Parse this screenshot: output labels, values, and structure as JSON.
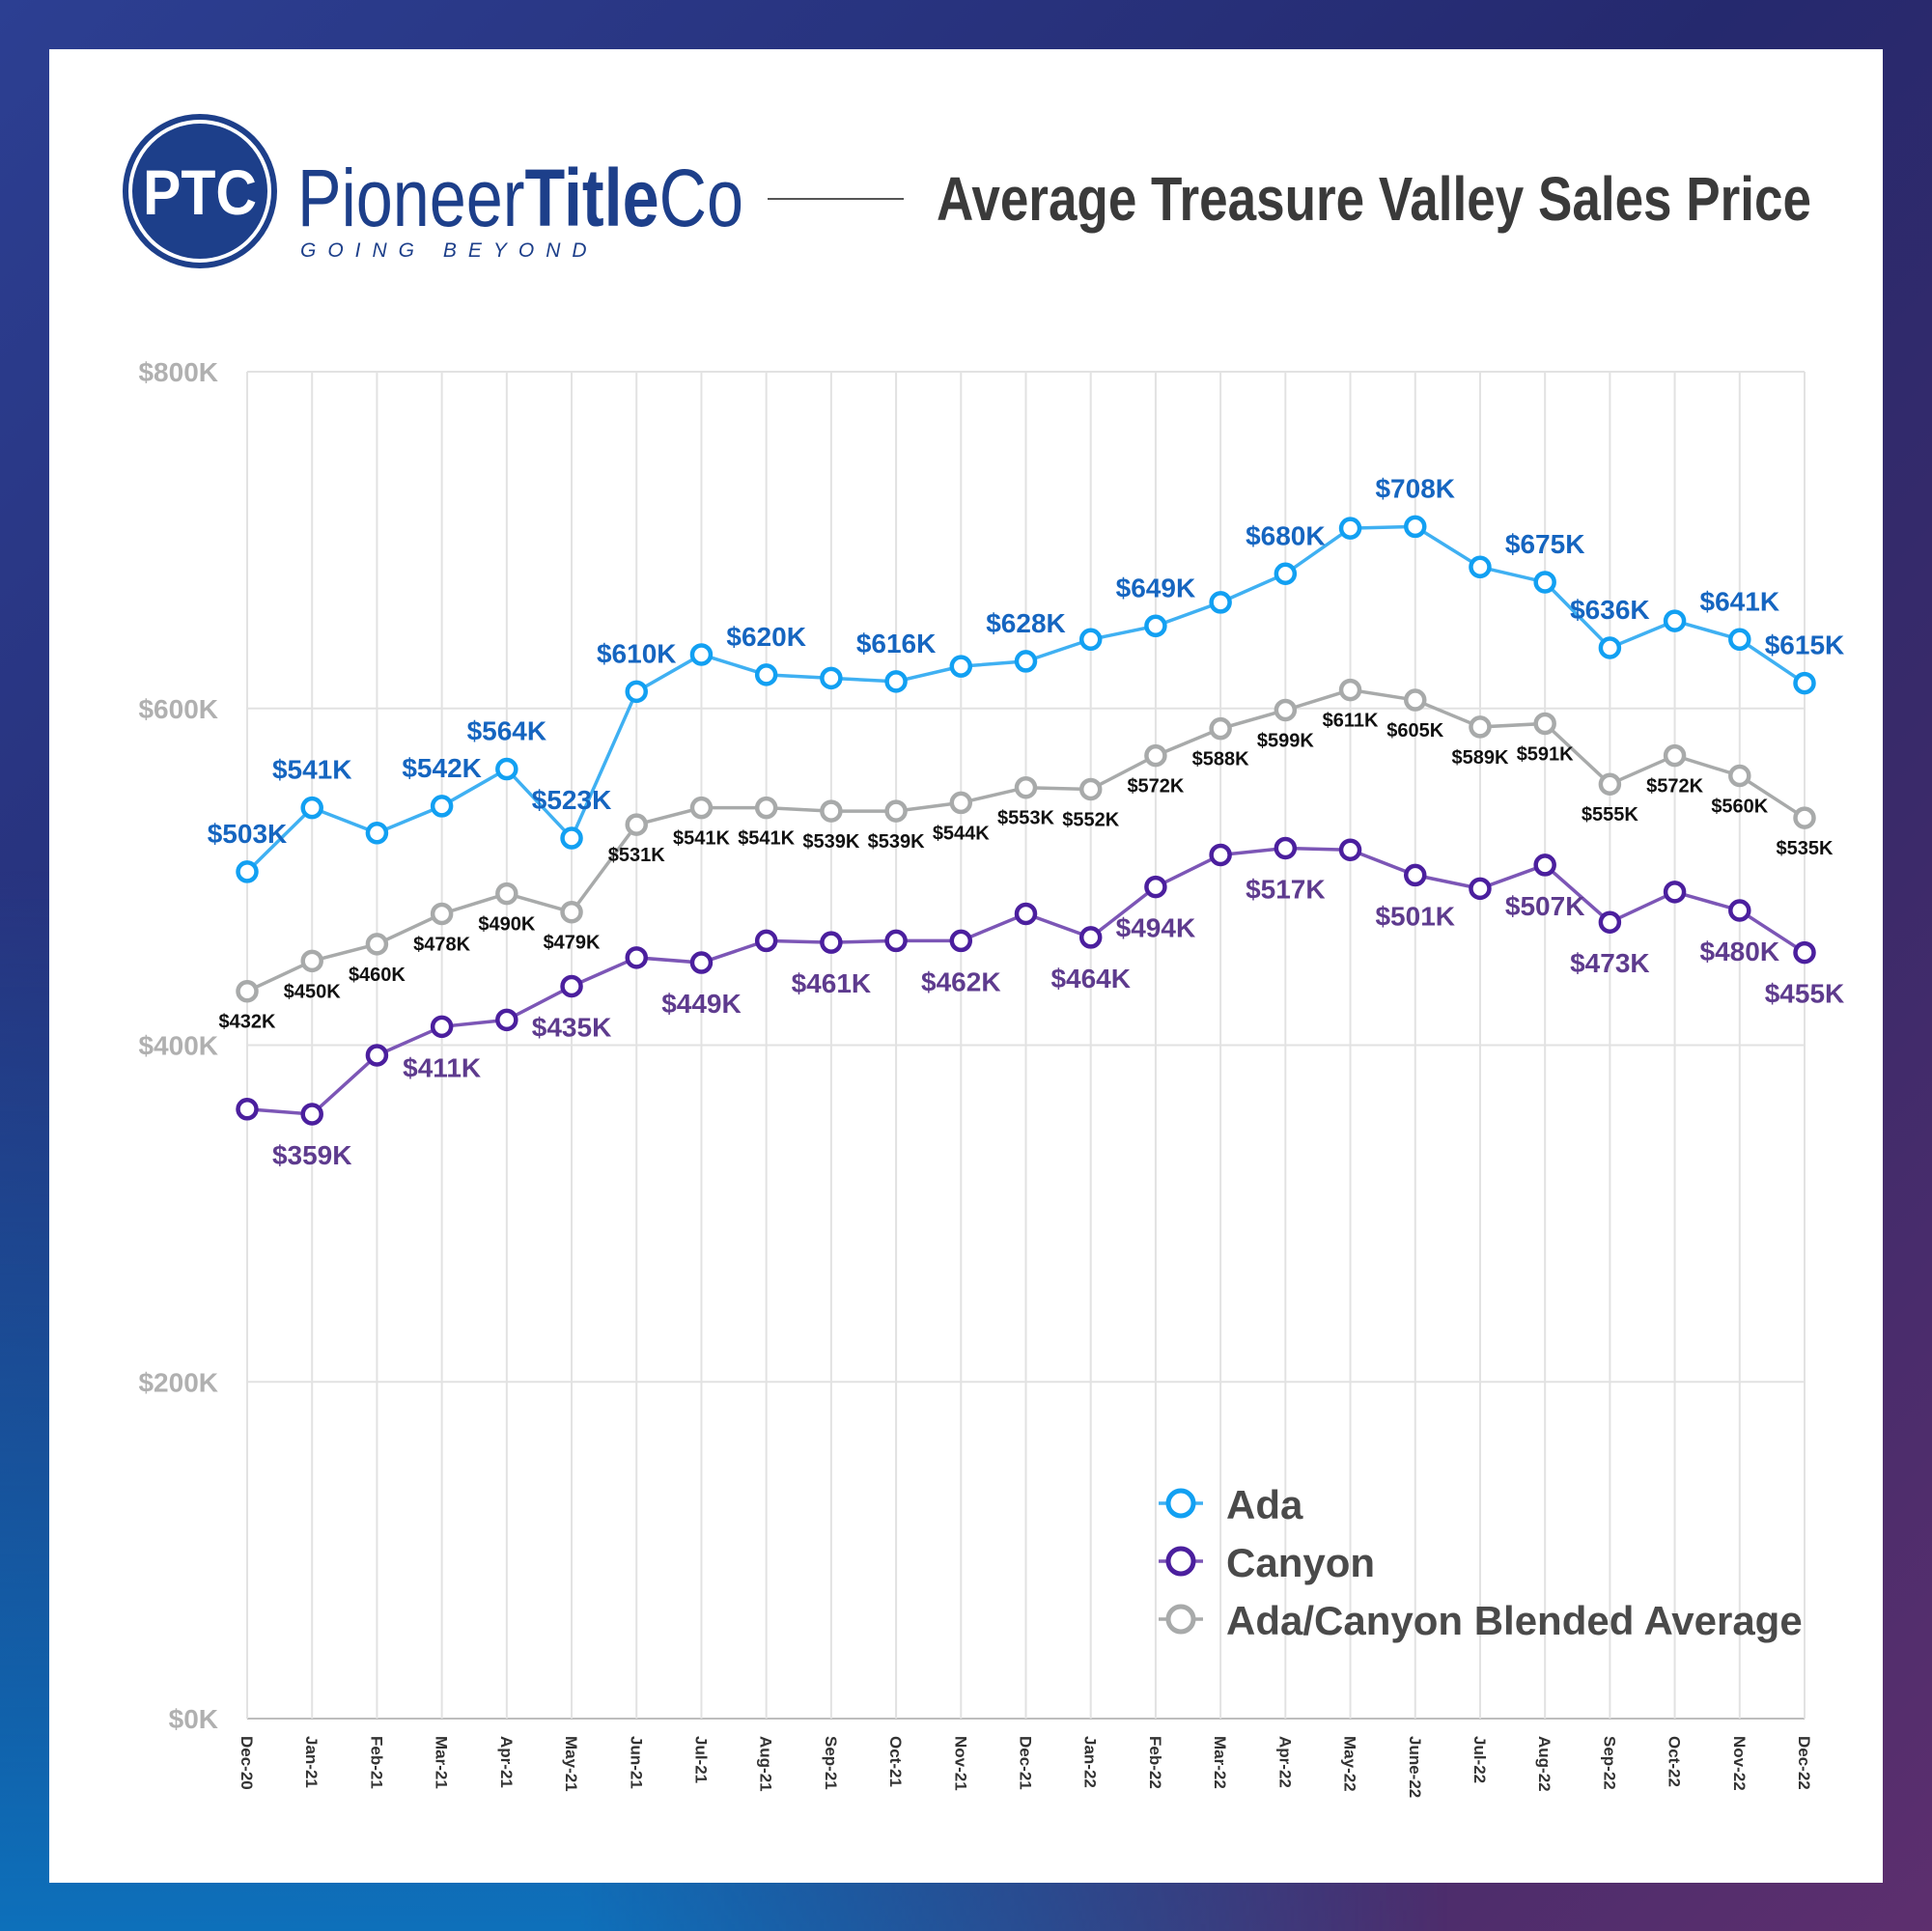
{
  "brand": {
    "logo_initials": "PTC",
    "name_part1": "Pioneer",
    "name_part2": "Title",
    "name_part3": "Co",
    "tagline": "GOING BEYOND",
    "color": "#1d3f8a"
  },
  "chart_data": {
    "type": "line",
    "title": "Average Treasure Valley Sales Price",
    "xlabel": "",
    "ylabel": "",
    "ylim": [
      0,
      800
    ],
    "yunit": "K USD",
    "yticks": [
      0,
      200,
      400,
      600,
      800
    ],
    "ytick_labels": [
      "$0K",
      "$200K",
      "$400K",
      "$600K",
      "$800K"
    ],
    "grid": true,
    "legend_position": "bottom-right",
    "categories": [
      "Dec-20",
      "Jan-21",
      "Feb-21",
      "Mar-21",
      "Apr-21",
      "May-21",
      "Jun-21",
      "Jul-21",
      "Aug-21",
      "Sep-21",
      "Oct-21",
      "Nov-21",
      "Dec-21",
      "Jan-22",
      "Feb-22",
      "Mar-22",
      "Apr-22",
      "May-22",
      "June-22",
      "Jul-22",
      "Aug-22",
      "Sep-22",
      "Oct-22",
      "Nov-22",
      "Dec-22"
    ],
    "series": [
      {
        "name": "Ada",
        "color": "#12a0f2",
        "label_color": "#1565c0",
        "values": [
          503,
          541,
          526,
          542,
          564,
          523,
          610,
          632,
          620,
          618,
          616,
          625,
          628,
          641,
          649,
          663,
          680,
          707,
          708,
          684,
          675,
          636,
          652,
          641,
          615
        ],
        "labels": [
          "$503K",
          "$541K",
          null,
          "$542K",
          "$564K",
          "$523K",
          "$610K",
          null,
          "$620K",
          null,
          "$616K",
          null,
          "$628K",
          null,
          "$649K",
          null,
          "$680K",
          null,
          "$708K",
          null,
          "$675K",
          "$636K",
          null,
          "$641K",
          "$615K"
        ]
      },
      {
        "name": "Canyon",
        "color": "#4b1f9e",
        "label_color": "#5e3b8e",
        "values": [
          362,
          359,
          394,
          411,
          415,
          435,
          452,
          449,
          462,
          461,
          462,
          462,
          478,
          464,
          494,
          513,
          517,
          516,
          501,
          493,
          507,
          473,
          491,
          480,
          455
        ],
        "labels": [
          null,
          "$359K",
          null,
          "$411K",
          null,
          "$435K",
          null,
          "$449K",
          null,
          "$461K",
          null,
          "$462K",
          null,
          "$464K",
          "$494K",
          null,
          "$517K",
          null,
          "$501K",
          null,
          "$507K",
          "$473K",
          null,
          "$480K",
          "$455K"
        ]
      },
      {
        "name": "Ada/Canyon Blended Average",
        "color": "#a8aaaa",
        "label_color": "#111111",
        "values": [
          432,
          450,
          460,
          478,
          490,
          479,
          531,
          541,
          541,
          539,
          539,
          544,
          553,
          552,
          572,
          588,
          599,
          611,
          605,
          589,
          591,
          555,
          572,
          560,
          535
        ],
        "labels": [
          "$432K",
          "$450K",
          "$460K",
          "$478K",
          "$490K",
          "$479K",
          "$531K",
          "$541K",
          "$541K",
          "$539K",
          "$539K",
          "$544K",
          "$553K",
          "$552K",
          "$572K",
          "$588K",
          "$599K",
          "$611K",
          "$605K",
          "$589K",
          "$591K",
          "$555K",
          "$572K",
          "$560K",
          "$535K"
        ]
      }
    ]
  }
}
